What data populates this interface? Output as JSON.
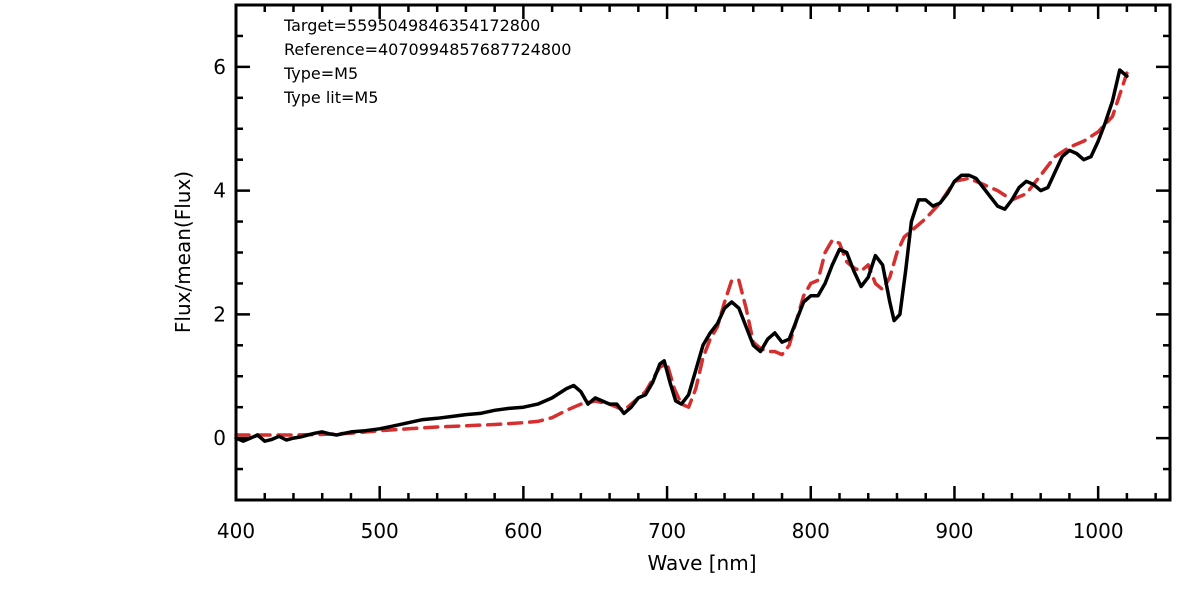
{
  "chart_data": {
    "type": "line",
    "xlabel": "Wave [nm]",
    "ylabel": "Flux/mean(Flux)",
    "xlim": [
      400,
      1050
    ],
    "ylim": [
      -1,
      7
    ],
    "x_ticks": [
      400,
      500,
      600,
      700,
      800,
      900,
      1000
    ],
    "y_ticks": [
      0,
      2,
      4,
      6
    ],
    "grid": false,
    "annotations": [
      "Target=5595049846354172800",
      "Reference=4070994857687724800",
      "Type=M5",
      "Type lit=M5"
    ],
    "colors": {
      "target": "#000000",
      "reference": "#d62f2f"
    },
    "series": [
      {
        "style": "solid",
        "color": "#000000",
        "x": [
          400,
          405,
          410,
          415,
          420,
          425,
          430,
          435,
          440,
          445,
          450,
          455,
          460,
          465,
          470,
          480,
          490,
          500,
          510,
          520,
          530,
          540,
          550,
          560,
          570,
          580,
          590,
          600,
          610,
          620,
          630,
          635,
          640,
          645,
          650,
          655,
          660,
          665,
          670,
          675,
          680,
          685,
          690,
          695,
          698,
          702,
          706,
          710,
          715,
          720,
          725,
          730,
          735,
          740,
          745,
          750,
          755,
          760,
          765,
          770,
          775,
          780,
          785,
          790,
          795,
          800,
          805,
          810,
          815,
          820,
          825,
          830,
          835,
          840,
          845,
          850,
          855,
          858,
          862,
          866,
          870,
          875,
          880,
          885,
          890,
          895,
          900,
          905,
          910,
          915,
          920,
          925,
          930,
          935,
          940,
          945,
          950,
          955,
          960,
          965,
          970,
          975,
          980,
          985,
          990,
          995,
          1000,
          1005,
          1010,
          1015,
          1020
        ],
        "y": [
          0.0,
          -0.05,
          0.0,
          0.05,
          -0.05,
          -0.02,
          0.03,
          -0.03,
          0.0,
          0.02,
          0.05,
          0.08,
          0.1,
          0.07,
          0.05,
          0.1,
          0.12,
          0.15,
          0.2,
          0.25,
          0.3,
          0.32,
          0.35,
          0.38,
          0.4,
          0.45,
          0.48,
          0.5,
          0.55,
          0.65,
          0.8,
          0.85,
          0.75,
          0.55,
          0.65,
          0.6,
          0.55,
          0.55,
          0.4,
          0.5,
          0.65,
          0.7,
          0.9,
          1.2,
          1.25,
          0.9,
          0.6,
          0.55,
          0.7,
          1.1,
          1.5,
          1.7,
          1.85,
          2.1,
          2.2,
          2.1,
          1.8,
          1.5,
          1.4,
          1.6,
          1.7,
          1.55,
          1.6,
          1.9,
          2.2,
          2.3,
          2.3,
          2.5,
          2.8,
          3.05,
          3.0,
          2.7,
          2.45,
          2.6,
          2.95,
          2.8,
          2.2,
          1.9,
          2.0,
          2.7,
          3.5,
          3.85,
          3.85,
          3.75,
          3.8,
          3.95,
          4.15,
          4.25,
          4.25,
          4.2,
          4.05,
          3.9,
          3.75,
          3.7,
          3.85,
          4.05,
          4.15,
          4.1,
          4.0,
          4.05,
          4.3,
          4.55,
          4.65,
          4.6,
          4.5,
          4.55,
          4.8,
          5.1,
          5.45,
          5.95,
          5.85
        ]
      },
      {
        "style": "dashed",
        "color": "#d62f2f",
        "x": [
          400,
          410,
          420,
          440,
          460,
          480,
          500,
          520,
          540,
          560,
          580,
          600,
          610,
          620,
          630,
          640,
          650,
          660,
          665,
          670,
          675,
          680,
          685,
          690,
          695,
          700,
          705,
          710,
          715,
          720,
          725,
          730,
          735,
          740,
          745,
          750,
          755,
          760,
          765,
          770,
          775,
          780,
          785,
          790,
          795,
          800,
          805,
          810,
          815,
          820,
          825,
          830,
          835,
          840,
          845,
          850,
          855,
          860,
          865,
          870,
          880,
          890,
          900,
          910,
          920,
          930,
          940,
          950,
          960,
          970,
          980,
          990,
          1000,
          1010,
          1020
        ],
        "y": [
          0.05,
          0.05,
          0.05,
          0.05,
          0.06,
          0.08,
          0.12,
          0.15,
          0.18,
          0.2,
          0.22,
          0.25,
          0.27,
          0.33,
          0.45,
          0.55,
          0.6,
          0.55,
          0.5,
          0.45,
          0.55,
          0.65,
          0.75,
          0.95,
          1.15,
          1.2,
          0.8,
          0.55,
          0.5,
          0.8,
          1.3,
          1.6,
          1.8,
          2.2,
          2.55,
          2.55,
          2.1,
          1.55,
          1.45,
          1.4,
          1.4,
          1.35,
          1.5,
          1.9,
          2.3,
          2.5,
          2.55,
          3.0,
          3.2,
          3.15,
          2.85,
          2.75,
          2.7,
          2.8,
          2.5,
          2.4,
          2.6,
          3.0,
          3.25,
          3.35,
          3.55,
          3.8,
          4.15,
          4.2,
          4.1,
          4.0,
          3.85,
          3.95,
          4.25,
          4.55,
          4.7,
          4.8,
          4.95,
          5.2,
          5.9
        ]
      }
    ]
  }
}
